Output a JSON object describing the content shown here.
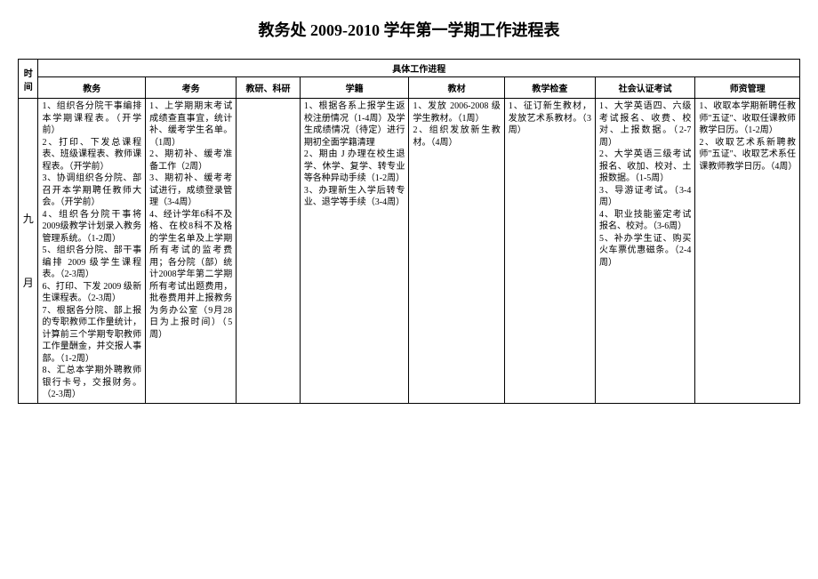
{
  "title": "教务处 2009-2010 学年第一学期工作进程表",
  "headers": {
    "time": "时间",
    "process": "具体工作进程",
    "cols": {
      "jw": "教务",
      "kw": "考务",
      "jyky": "教研、科研",
      "xj": "学籍",
      "jc": "教材",
      "jxjc": "教学检查",
      "shrz": "社会认证考试",
      "szgl": "师资管理"
    }
  },
  "row": {
    "time": "九\n\n月",
    "jw": "1、组织各分院干事编排本学期课程表。（开学前）\n2、打印、下发总课程表、班级课程表、教师课程表。（开学前）\n3、协调组织各分院、部召开本学期聘任教师大会。（开学前）\n4、组织各分院干事将2009级教学计划录入教务管理系统。（1-2周）\n5、组织各分院、部干事编排 2009 级学生课程表。（2-3周）\n6、打印、下发 2009 级新生课程表。（2-3周）\n7、根据各分院、部上报的专职教师工作量统计，计算前三个学期专职教师工作量酬金，并交报人事部。（1-2周）\n8、汇总本学期外聘教师银行卡号，交报财务。（2-3周）",
    "kw": "1、上学期期末考试成绩查直事宜，统计补、缓考学生名单。（1周）\n2、期初补、缓考准备工作（2周）\n3、期初补、缓考考试进行，成绩登录管理（3-4周）\n4、经计学年6科不及格、在校8科不及格的学生名单及上学期所有考试的监考费用；各分院（部）统计2008学年第二学期所有考试出题费用，批卷费用并上报教务为务办公室（9月28日为上报时间）（5周）",
    "jyky": "",
    "xj": "1、根据各系上报学生返校注册情况（1-4周）及学生成绩情况（待定）进行期初全面学籍清理\n2、期由 J 办理在校生退学、休学、复学、转专业等各种异动手续（1-2周）\n3、办理新生入学后转专业、退学等手续（3-4周）",
    "jc": "1、发放 2006-2008 级学生教材。（1周）\n2、组织发放新生教材。（4周）",
    "jxjc": "1、征订新生教材，发放艺术系教材。（3周）",
    "shrz": "1、大学英语四、六级考试报名、收费、校对、上报数据。（2-7周）\n2、大学英语三级考试报名、收加、校对、土报数据。（1-5周）\n3、导游证考试。（3-4周）\n4、职业技能鉴定考试报名、校对。（3-6周）\n5、补办学生证、购买火车票优惠磁条。（2-4周）",
    "szgl": "1、收取本学期新聘任教师\"五证\"、收取任课教师教学日历。（1-2周）\n2、收取艺术系新聘教师\"五证\"、收取艺术系任课教师教学日历。（4周）"
  }
}
